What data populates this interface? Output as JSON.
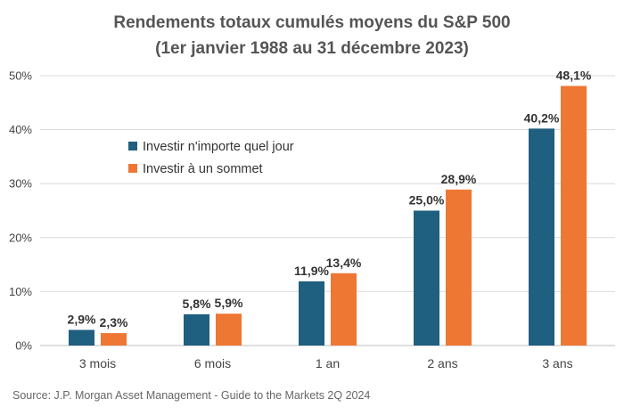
{
  "chart_data": {
    "type": "bar",
    "title_line1": "Rendements totaux cumulés moyens du S&P 500",
    "title_line2": "(1er janvier 1988 au 31 décembre 2023)",
    "xlabel": "",
    "ylabel": "",
    "ylim": [
      0,
      50
    ],
    "yticks": [
      0,
      10,
      20,
      30,
      40,
      50
    ],
    "ytick_labels": [
      "0%",
      "10%",
      "20%",
      "30%",
      "40%",
      "50%"
    ],
    "grid": true,
    "legend_position": "center-left",
    "categories": [
      "3 mois",
      "6 mois",
      "1 an",
      "2 ans",
      "3 ans"
    ],
    "series": [
      {
        "name": "Investir n'importe quel jour",
        "color": "#1f5f7f",
        "values": [
          2.9,
          5.8,
          11.9,
          25.0,
          40.2
        ],
        "labels": [
          "2,9%",
          "5,8%",
          "11,9%",
          "25,0%",
          "40,2%"
        ]
      },
      {
        "name": "Investir à un sommet",
        "color": "#ee7733",
        "values": [
          2.3,
          5.9,
          13.4,
          28.9,
          48.1
        ],
        "labels": [
          "2,3%",
          "5,9%",
          "13,4%",
          "28,9%",
          "48,1%"
        ]
      }
    ],
    "source": "Source: J.P. Morgan Asset Management - Guide to the Markets 2Q 2024"
  }
}
